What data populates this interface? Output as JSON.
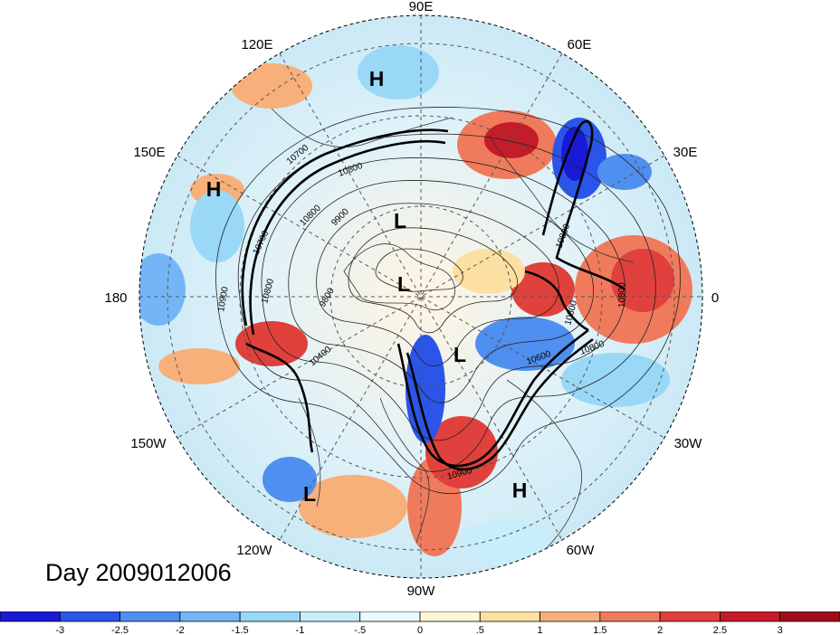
{
  "title": "Day 2009012006",
  "longitude_labels": {
    "n90e": "90E",
    "n60e": "60E",
    "n120e": "120E",
    "n30e": "30E",
    "n150e": "150E",
    "n0": "0",
    "n180": "180",
    "n30w": "30W",
    "n150w": "150W",
    "n60w": "60W",
    "n120w": "120W",
    "n90w": "90W"
  },
  "pressure_centers": [
    "H",
    "H",
    "L",
    "L",
    "L",
    "L",
    "H"
  ],
  "contour_labels": [
    "10900",
    "10800",
    "10800",
    "10800",
    "10800",
    "10700",
    "10700",
    "10800",
    "9800",
    "9900",
    "10400",
    "10800",
    "10800",
    "10600",
    "10900"
  ],
  "colorbar": {
    "labels": [
      "-3",
      "-2.5",
      "-2",
      "-1.5",
      "-1",
      "-.5",
      "0",
      ".5",
      "1",
      "1.5",
      "2",
      "2.5",
      "3"
    ],
    "colors": [
      "#1a1ad6",
      "#2a55e8",
      "#4f8fef",
      "#74b6f5",
      "#9ad8f7",
      "#c8eefb",
      "#eafaff",
      "#fff8d8",
      "#fce0a2",
      "#f7b07a",
      "#f07a5c",
      "#e0413c",
      "#c41c28",
      "#9e0e1a"
    ]
  }
}
